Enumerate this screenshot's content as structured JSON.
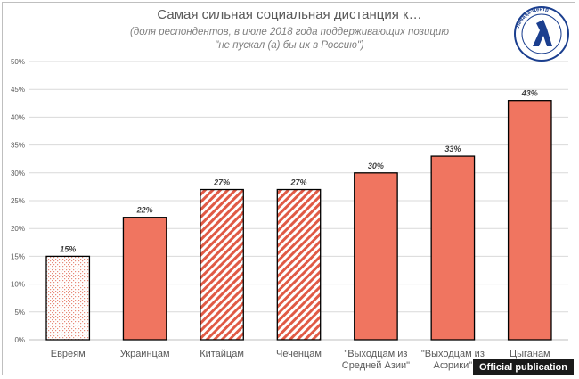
{
  "logo_text": "Левада-Центр",
  "badge": "Official publication",
  "colors": {
    "bar": "#f07560",
    "hatch": "#e05a45",
    "text": "#595959"
  },
  "chart_data": {
    "type": "bar",
    "title": "Самая сильная социальная дистанция к…",
    "subtitle_line1": "(доля респондентов, в июле 2018 года поддерживающих позицию",
    "subtitle_line2": "\"не пускал (а) бы их в Россию\")",
    "categories": [
      [
        "Евреям"
      ],
      [
        "Украинцам"
      ],
      [
        "Китайцам"
      ],
      [
        "Чеченцам"
      ],
      [
        "\"Выходцам из",
        "Средней Азии\""
      ],
      [
        "\"Выходцам из",
        "Африки\""
      ],
      [
        "Цыганам"
      ]
    ],
    "values": [
      15,
      22,
      27,
      27,
      30,
      33,
      43
    ],
    "value_labels": [
      "15%",
      "22%",
      "27%",
      "27%",
      "30%",
      "33%",
      "43%"
    ],
    "fill_style": [
      "dots",
      "solid",
      "stripes",
      "stripes",
      "solid",
      "solid",
      "solid"
    ],
    "ylim": [
      0,
      50
    ],
    "yticks": [
      "0%",
      "5%",
      "10%",
      "15%",
      "20%",
      "25%",
      "30%",
      "35%",
      "40%",
      "45%",
      "50%"
    ],
    "grid": true,
    "legend": "none"
  }
}
